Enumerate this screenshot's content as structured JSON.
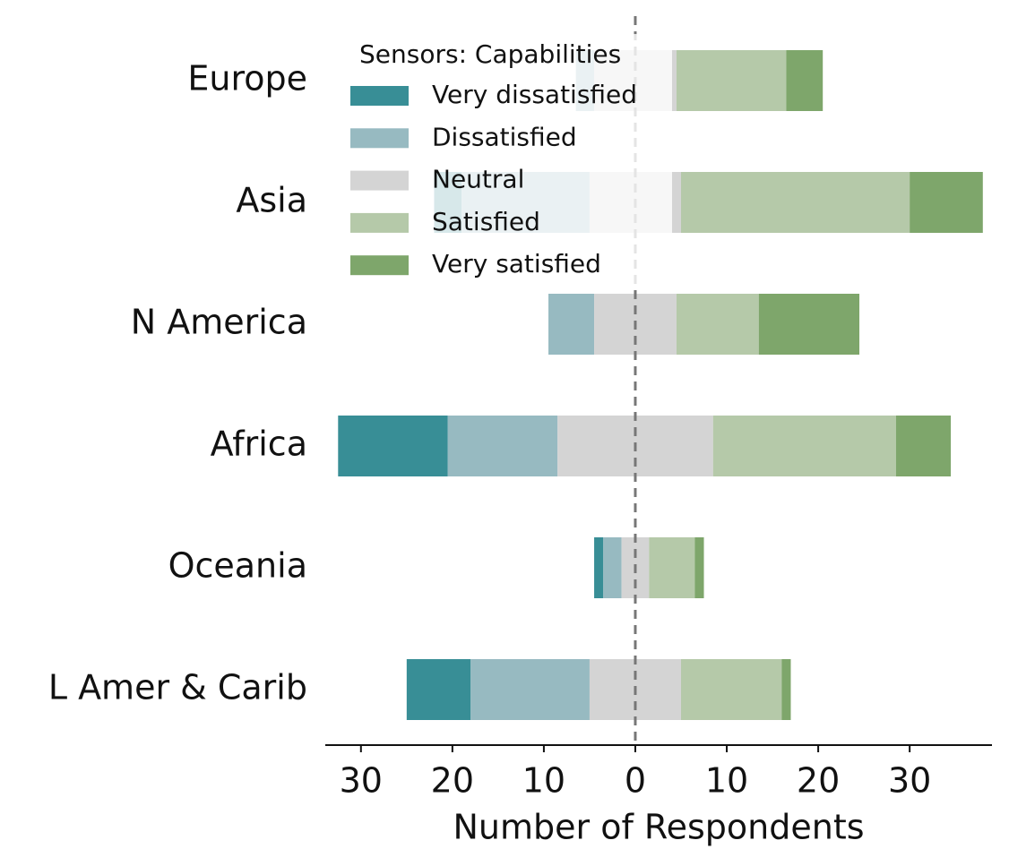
{
  "chart_data": {
    "type": "diverging-bar",
    "xlabel": "Number of Respondents",
    "legend_title": "Sensors: Capabilities",
    "legend": "upper left",
    "categories": [
      "Europe",
      "Asia",
      "N America",
      "Africa",
      "Oceania",
      "L Amer & Carib"
    ],
    "series": [
      {
        "name": "Very dissatisfied",
        "color": "#388e96",
        "values": [
          0,
          3,
          0,
          12,
          1,
          7
        ]
      },
      {
        "name": "Dissatisfied",
        "color": "#97bac1",
        "values": [
          2,
          14,
          5,
          12,
          2,
          13
        ]
      },
      {
        "name": "Neutral",
        "color": "#d4d4d4",
        "values": [
          9,
          10,
          9,
          17,
          3,
          10
        ]
      },
      {
        "name": "Satisfied",
        "color": "#b5c9a9",
        "values": [
          12,
          25,
          9,
          20,
          5,
          11
        ]
      },
      {
        "name": "Very satisfied",
        "color": "#7ea66b",
        "values": [
          4,
          8,
          11,
          6,
          1,
          1
        ]
      }
    ],
    "xlim": [
      -33.9,
      39.0
    ],
    "xticks": [
      {
        "value": -30,
        "label": "30"
      },
      {
        "value": -20,
        "label": "20"
      },
      {
        "value": -10,
        "label": "10"
      },
      0,
      10,
      20,
      30
    ]
  }
}
